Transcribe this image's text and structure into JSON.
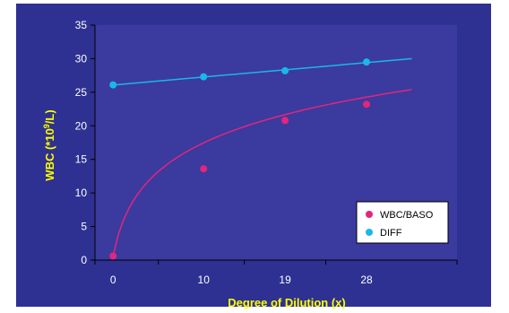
{
  "colors": {
    "panel_bg": "#2e3192",
    "plot_bg": "#3b3a9e",
    "axis": "#000000",
    "text": "#ffffff",
    "axis_title": "#ffff00",
    "legend_bg": "#ffffff"
  },
  "chart_data": {
    "type": "scatter",
    "title": "",
    "xlabel": "Degree of Dilution (x)",
    "ylabel_main": "WBC (*10",
    "ylabel_sup": "9",
    "ylabel_tail": "/L)",
    "x_ticks": [
      0,
      10,
      19,
      28
    ],
    "y_ticks": [
      0,
      5,
      10,
      15,
      20,
      25,
      30,
      35
    ],
    "ylim": [
      0,
      35
    ],
    "xlim": [
      -2,
      38
    ],
    "grid": false,
    "legend_placement": "bottom-right",
    "series": [
      {
        "name": "WBC/BASO",
        "color": "#e0267e",
        "points": [
          {
            "x": 0,
            "y": 0.6
          },
          {
            "x": 10,
            "y": 13.6
          },
          {
            "x": 19,
            "y": 20.8
          },
          {
            "x": 28,
            "y": 23.2
          }
        ],
        "trendline": "logarithmic",
        "trend_x_end": 33,
        "trend_y_end": 25.4
      },
      {
        "name": "DIFF",
        "color": "#1ab7ea",
        "points": [
          {
            "x": 0,
            "y": 26.1
          },
          {
            "x": 10,
            "y": 27.3
          },
          {
            "x": 19,
            "y": 28.2
          },
          {
            "x": 28,
            "y": 29.5
          }
        ],
        "trendline": "linear",
        "trend_x_end": 33,
        "trend_y_end": 30.0
      }
    ]
  }
}
